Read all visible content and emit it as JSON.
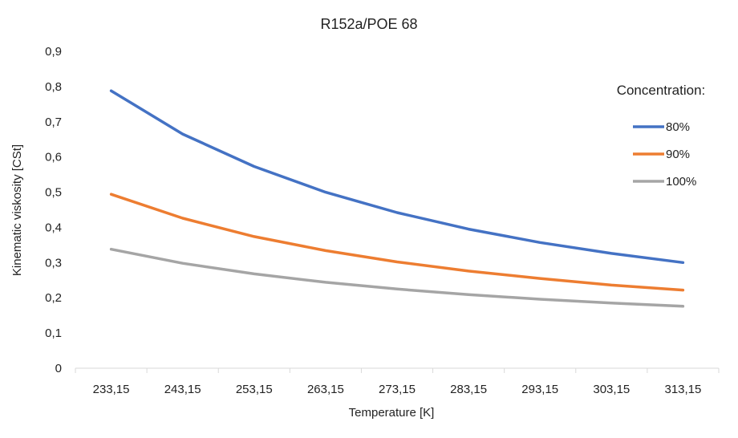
{
  "chart_data": {
    "type": "line",
    "title": "R152a/POE 68",
    "xlabel": "Temperature [K]",
    "ylabel": "Kinematic viskosity  [CSt]",
    "categories": [
      "233,15",
      "243,15",
      "253,15",
      "263,15",
      "273,15",
      "283,15",
      "293,15",
      "303,15",
      "313,15"
    ],
    "yticks": [
      "0",
      "0,1",
      "0,2",
      "0,3",
      "0,4",
      "0,5",
      "0,6",
      "0,7",
      "0,8",
      "0,9"
    ],
    "ylim": [
      0,
      0.9
    ],
    "grid": false,
    "legend": {
      "title": "Concentration:",
      "placement": "right"
    },
    "series": [
      {
        "name": "80%",
        "color": "#4472C4",
        "values": [
          0.788,
          0.665,
          0.573,
          0.5,
          0.442,
          0.395,
          0.357,
          0.326,
          0.3
        ]
      },
      {
        "name": "90%",
        "color": "#ED7D31",
        "values": [
          0.494,
          0.426,
          0.374,
          0.334,
          0.302,
          0.276,
          0.255,
          0.236,
          0.222
        ]
      },
      {
        "name": "100%",
        "color": "#A5A5A5",
        "values": [
          0.338,
          0.298,
          0.268,
          0.244,
          0.225,
          0.209,
          0.196,
          0.185,
          0.176
        ]
      }
    ]
  }
}
